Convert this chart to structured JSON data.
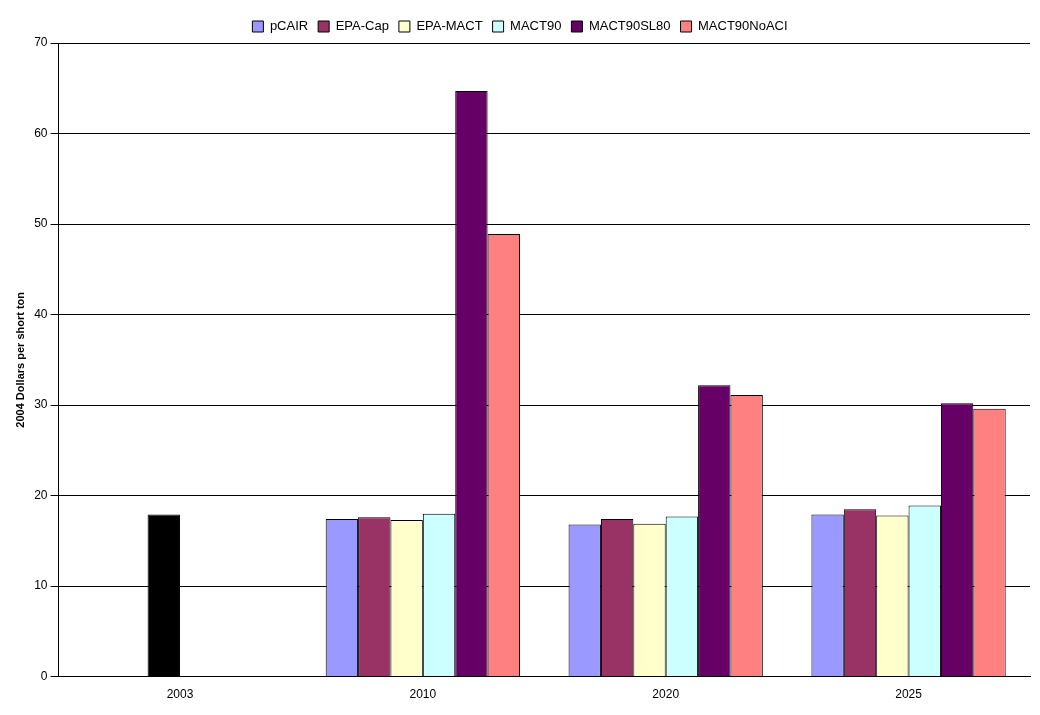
{
  "chart_data": {
    "type": "bar",
    "ylabel": "2004 Dollars per short ton",
    "categories": [
      "2003",
      "2010",
      "2020",
      "2025"
    ],
    "series": [
      {
        "name": "pCAIR",
        "color": "#9999ff",
        "values": [
          null,
          17.4,
          16.8,
          17.9
        ]
      },
      {
        "name": "EPA-Cap",
        "color": "#993366",
        "values": [
          null,
          17.6,
          17.4,
          18.5
        ]
      },
      {
        "name": "EPA-MACT",
        "color": "#ffffcc",
        "colors": [
          "#000000",
          "#ffffcc",
          "#ffffcc",
          "#ffffcc"
        ],
        "values": [
          17.9,
          17.3,
          16.9,
          17.8
        ]
      },
      {
        "name": "MACT90",
        "color": "#ccffff",
        "values": [
          null,
          18.0,
          17.7,
          18.9
        ]
      },
      {
        "name": "MACT90SL80",
        "color": "#660066",
        "values": [
          null,
          64.7,
          32.2,
          30.2
        ]
      },
      {
        "name": "MACT90NoACI",
        "color": "#ff8080",
        "values": [
          null,
          48.9,
          31.1,
          29.6
        ]
      }
    ],
    "ylim": [
      0,
      70
    ],
    "yticks": [
      0,
      10,
      20,
      30,
      40,
      50,
      60,
      70
    ],
    "grid": "y",
    "legend": "top"
  }
}
